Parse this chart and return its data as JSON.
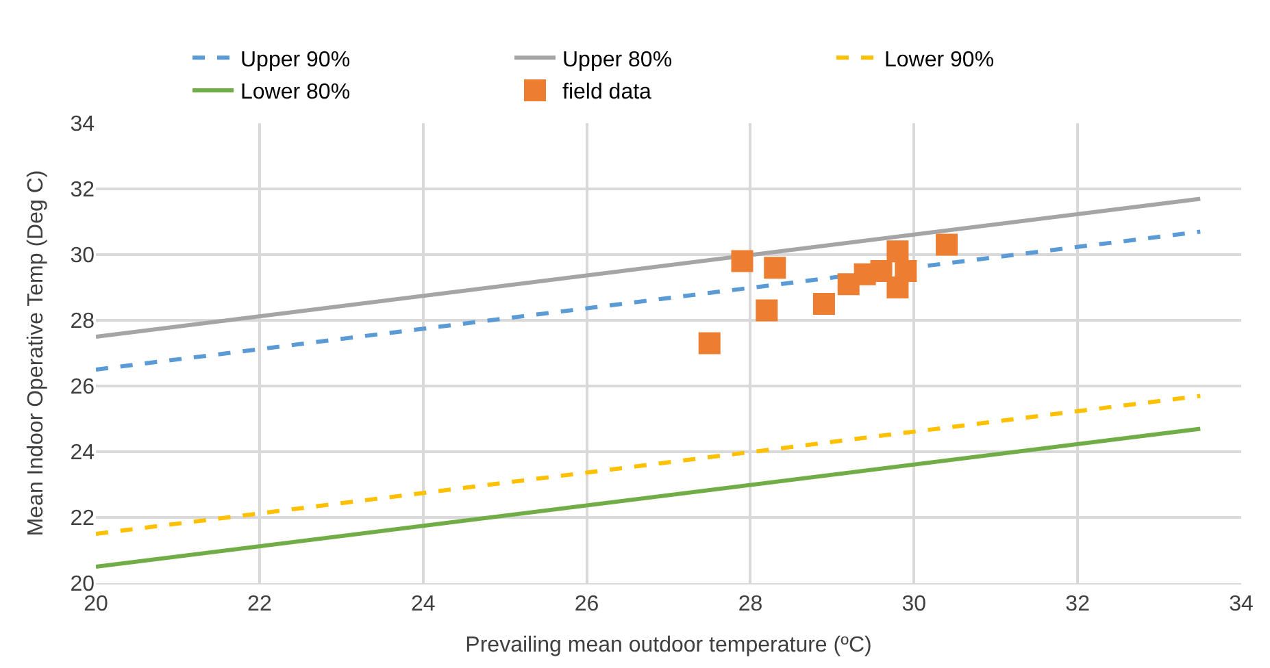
{
  "chart_data": {
    "type": "line",
    "xlabel": "Prevailing mean outdoor temperature (ºC)",
    "ylabel": "Mean Indoor Operative Temp (Deg C)",
    "xlim": [
      20,
      34
    ],
    "xticks": [
      20,
      22,
      24,
      26,
      28,
      30,
      32,
      34
    ],
    "ylim": [
      20,
      34
    ],
    "yticks": [
      20,
      22,
      24,
      26,
      28,
      30,
      32,
      34
    ],
    "grid": true,
    "legend": "top",
    "x": [
      20,
      33.5
    ],
    "series": [
      {
        "name": "Upper 90%",
        "color": "#5b9bd5",
        "line_style": "dashed",
        "values": [
          26.5,
          30.7
        ]
      },
      {
        "name": "Upper 80%",
        "color": "#a5a5a5",
        "line_style": "solid",
        "values": [
          27.5,
          31.7
        ]
      },
      {
        "name": "Lower 90%",
        "color": "#ffc000",
        "line_style": "dashed",
        "values": [
          21.5,
          25.7
        ]
      },
      {
        "name": "Lower 80%",
        "color": "#70ad47",
        "line_style": "solid",
        "values": [
          20.5,
          24.7
        ]
      },
      {
        "name": "field data",
        "type": "scatter",
        "marker": "square",
        "color": "#ed7d31",
        "x": [
          27.5,
          27.9,
          28.3,
          28.2,
          28.9,
          29.2,
          29.4,
          29.6,
          29.8,
          29.9,
          29.8,
          30.4
        ],
        "values": [
          27.3,
          29.8,
          29.6,
          28.3,
          28.5,
          29.1,
          29.4,
          29.5,
          30.1,
          29.5,
          29.0,
          30.3
        ]
      }
    ]
  }
}
